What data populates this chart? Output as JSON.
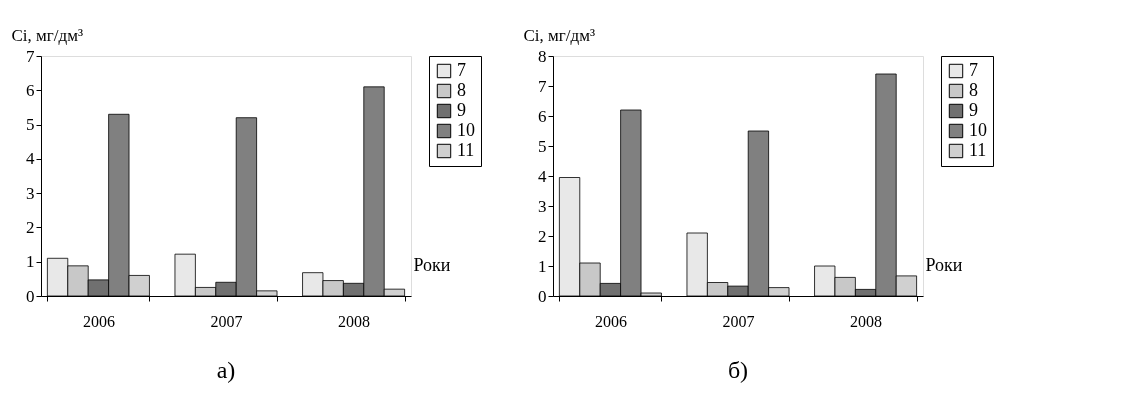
{
  "chart_data": [
    {
      "type": "bar",
      "title": "а)",
      "ylabel": "Сі, мг/дм³",
      "xlabel": "Роки",
      "categories": [
        "2006",
        "2007",
        "2008"
      ],
      "ylim": [
        0,
        7
      ],
      "yticks": [
        0,
        1,
        2,
        3,
        4,
        5,
        6,
        7
      ],
      "grid": false,
      "legend": "right",
      "series": [
        {
          "name": "7",
          "color": "#e8e8e8",
          "values": [
            1.1,
            1.22,
            0.68
          ]
        },
        {
          "name": "8",
          "color": "#c8c8c8",
          "values": [
            0.88,
            0.25,
            0.45
          ]
        },
        {
          "name": "9",
          "color": "#707070",
          "values": [
            0.47,
            0.4,
            0.37
          ]
        },
        {
          "name": "10",
          "color": "#808080",
          "values": [
            5.3,
            5.2,
            6.1
          ]
        },
        {
          "name": "11",
          "color": "#d0d0d0",
          "values": [
            0.6,
            0.15,
            0.2
          ]
        }
      ]
    },
    {
      "type": "bar",
      "title": "б)",
      "ylabel": "Сі, мг/дм³",
      "xlabel": "Роки",
      "categories": [
        "2006",
        "2007",
        "2008"
      ],
      "ylim": [
        0,
        8
      ],
      "yticks": [
        0,
        1,
        2,
        3,
        4,
        5,
        6,
        7,
        8
      ],
      "grid": false,
      "legend": "right",
      "series": [
        {
          "name": "7",
          "color": "#e8e8e8",
          "values": [
            3.95,
            2.1,
            1.0
          ]
        },
        {
          "name": "8",
          "color": "#c8c8c8",
          "values": [
            1.1,
            0.45,
            0.62
          ]
        },
        {
          "name": "9",
          "color": "#707070",
          "values": [
            0.42,
            0.33,
            0.22
          ]
        },
        {
          "name": "10",
          "color": "#808080",
          "values": [
            6.2,
            5.5,
            7.4
          ]
        },
        {
          "name": "11",
          "color": "#d0d0d0",
          "values": [
            0.1,
            0.28,
            0.67
          ]
        }
      ]
    }
  ]
}
